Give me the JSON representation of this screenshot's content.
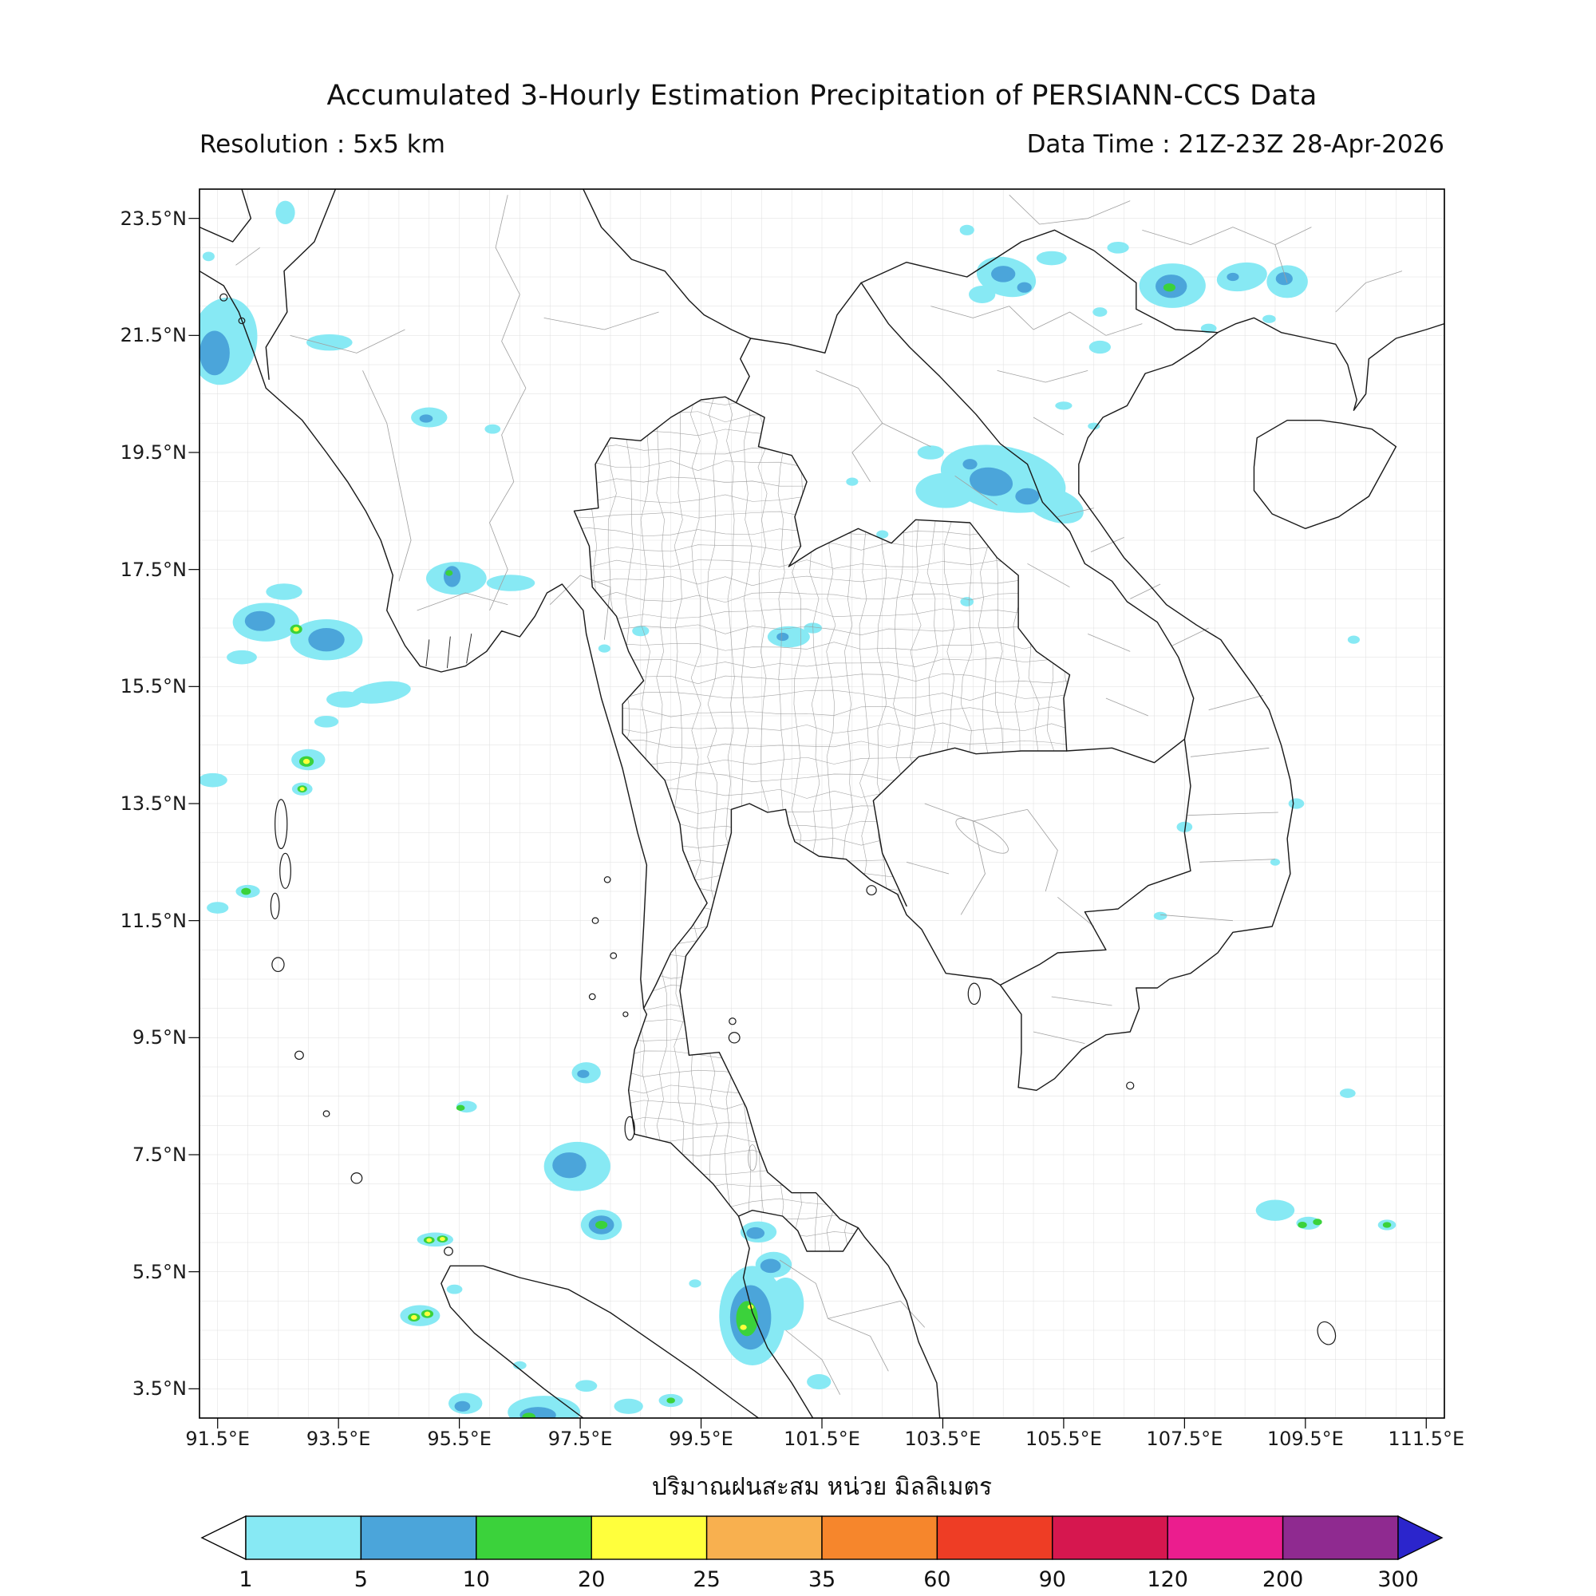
{
  "header": {
    "title": "Accumulated 3-Hourly Estimation Precipitation of PERSIANN-CCS Data",
    "resolution": "Resolution : 5x5 km",
    "data_time": "Data Time : 21Z-23Z 28-Apr-2026"
  },
  "map": {
    "extent": {
      "lon_min": 91.2,
      "lon_max": 111.8,
      "lat_min": 3.0,
      "lat_max": 24.0
    },
    "grid_step": 0.5
  },
  "axes": {
    "lon_ticks": [
      {
        "v": 91.5,
        "label": "91.5°E"
      },
      {
        "v": 93.5,
        "label": "93.5°E"
      },
      {
        "v": 95.5,
        "label": "95.5°E"
      },
      {
        "v": 97.5,
        "label": "97.5°E"
      },
      {
        "v": 99.5,
        "label": "99.5°E"
      },
      {
        "v": 101.5,
        "label": "101.5°E"
      },
      {
        "v": 103.5,
        "label": "103.5°E"
      },
      {
        "v": 105.5,
        "label": "105.5°E"
      },
      {
        "v": 107.5,
        "label": "107.5°E"
      },
      {
        "v": 109.5,
        "label": "109.5°E"
      },
      {
        "v": 111.5,
        "label": "111.5°E"
      }
    ],
    "lat_ticks": [
      {
        "v": 23.5,
        "label": "23.5°N"
      },
      {
        "v": 21.5,
        "label": "21.5°N"
      },
      {
        "v": 19.5,
        "label": "19.5°N"
      },
      {
        "v": 17.5,
        "label": "17.5°N"
      },
      {
        "v": 15.5,
        "label": "15.5°N"
      },
      {
        "v": 13.5,
        "label": "13.5°N"
      },
      {
        "v": 11.5,
        "label": "11.5°N"
      },
      {
        "v": 9.5,
        "label": "9.5°N"
      },
      {
        "v": 7.5,
        "label": "7.5°N"
      },
      {
        "v": 5.5,
        "label": "5.5°N"
      },
      {
        "v": 3.5,
        "label": "3.5°N"
      }
    ]
  },
  "colorbar": {
    "unit_label_thai": "ปริมาณฝนสะสม หน่วย มิลลิเมตร",
    "tick_labels": [
      "1",
      "5",
      "10",
      "20",
      "25",
      "35",
      "60",
      "90",
      "120",
      "200",
      "300"
    ],
    "segment_colors": [
      "#87e9f4",
      "#4ba5da",
      "#3bd23b",
      "#ffff3c",
      "#f8b04f",
      "#f6862c",
      "#ee3d25",
      "#d6174f",
      "#eb1d8e",
      "#8f2a90"
    ],
    "left_arrow_color": "#ffffff",
    "right_arrow_color": "#2b25cc"
  },
  "precipitation": {
    "units": "mm",
    "level_ranges_mm": {
      "c1": "1-5",
      "c2": "5-10",
      "c3": "10-20",
      "c4": "20-25"
    },
    "colors": {
      "c1": "#87e9f4",
      "c2": "#4ba5da",
      "c3": "#3bd23b",
      "c4": "#ffff3c"
    },
    "cells": [
      [
        91.6,
        21.4,
        0.55,
        0.75,
        "c1",
        -10
      ],
      [
        92.62,
        23.6,
        0.16,
        0.2,
        "c1",
        0
      ],
      [
        91.35,
        22.85,
        0.1,
        0.08,
        "c1",
        0
      ],
      [
        93.35,
        21.38,
        0.38,
        0.14,
        "c1",
        0
      ],
      [
        95.0,
        20.1,
        0.3,
        0.17,
        "c1",
        0
      ],
      [
        96.05,
        19.9,
        0.13,
        0.08,
        "c1",
        0
      ],
      [
        104.55,
        22.5,
        0.5,
        0.33,
        "c1",
        -15
      ],
      [
        104.15,
        22.2,
        0.22,
        0.15,
        "c1",
        0
      ],
      [
        105.3,
        22.82,
        0.25,
        0.12,
        "c1",
        0
      ],
      [
        106.4,
        23.0,
        0.18,
        0.1,
        "c1",
        0
      ],
      [
        103.9,
        23.3,
        0.12,
        0.09,
        "c1",
        0
      ],
      [
        107.3,
        22.35,
        0.55,
        0.38,
        "c1",
        0
      ],
      [
        108.45,
        22.5,
        0.42,
        0.24,
        "c1",
        10
      ],
      [
        109.2,
        22.42,
        0.34,
        0.28,
        "c1",
        0
      ],
      [
        106.1,
        21.9,
        0.12,
        0.08,
        "c1",
        0
      ],
      [
        106.1,
        21.3,
        0.18,
        0.11,
        "c1",
        0
      ],
      [
        107.9,
        21.62,
        0.13,
        0.08,
        "c1",
        0
      ],
      [
        108.9,
        21.78,
        0.11,
        0.07,
        "c1",
        0
      ],
      [
        105.5,
        20.3,
        0.14,
        0.07,
        "c1",
        0
      ],
      [
        106.0,
        19.95,
        0.1,
        0.06,
        "c1",
        0
      ],
      [
        104.5,
        19.05,
        1.05,
        0.55,
        "c1",
        -12
      ],
      [
        103.55,
        18.85,
        0.5,
        0.3,
        "c1",
        0
      ],
      [
        105.35,
        18.6,
        0.5,
        0.28,
        "c1",
        -20
      ],
      [
        103.3,
        19.5,
        0.22,
        0.12,
        "c1",
        0
      ],
      [
        102.0,
        19.0,
        0.1,
        0.07,
        "c1",
        0
      ],
      [
        102.5,
        18.1,
        0.1,
        0.07,
        "c1",
        0
      ],
      [
        92.3,
        16.6,
        0.55,
        0.33,
        "c1",
        0
      ],
      [
        93.3,
        16.3,
        0.6,
        0.35,
        "c1",
        0
      ],
      [
        92.6,
        17.12,
        0.3,
        0.14,
        "c1",
        0
      ],
      [
        91.9,
        16.0,
        0.25,
        0.12,
        "c1",
        0
      ],
      [
        95.45,
        17.35,
        0.5,
        0.28,
        "c1",
        0
      ],
      [
        96.35,
        17.27,
        0.4,
        0.14,
        "c1",
        0
      ],
      [
        94.2,
        15.4,
        0.5,
        0.18,
        "c1",
        8
      ],
      [
        93.6,
        15.28,
        0.3,
        0.14,
        "c1",
        0
      ],
      [
        93.3,
        14.9,
        0.2,
        0.1,
        "c1",
        0
      ],
      [
        93.0,
        14.25,
        0.28,
        0.18,
        "c1",
        0
      ],
      [
        92.9,
        13.75,
        0.17,
        0.11,
        "c1",
        0
      ],
      [
        91.42,
        13.9,
        0.24,
        0.12,
        "c1",
        0
      ],
      [
        91.5,
        11.72,
        0.18,
        0.1,
        "c1",
        0
      ],
      [
        98.5,
        16.45,
        0.14,
        0.09,
        "c1",
        0
      ],
      [
        97.9,
        16.15,
        0.1,
        0.07,
        "c1",
        0
      ],
      [
        100.95,
        16.35,
        0.35,
        0.18,
        "c1",
        0
      ],
      [
        101.35,
        16.5,
        0.15,
        0.09,
        "c1",
        0
      ],
      [
        103.9,
        16.95,
        0.11,
        0.08,
        "c1",
        0
      ],
      [
        92.0,
        12.0,
        0.2,
        0.11,
        "c1",
        0
      ],
      [
        97.6,
        8.9,
        0.24,
        0.18,
        "c1",
        0
      ],
      [
        95.62,
        8.32,
        0.17,
        0.1,
        "c1",
        0
      ],
      [
        97.45,
        7.3,
        0.55,
        0.42,
        "c1",
        0
      ],
      [
        97.85,
        6.3,
        0.34,
        0.26,
        "c1",
        0
      ],
      [
        95.1,
        6.05,
        0.3,
        0.12,
        "c1",
        0
      ],
      [
        95.42,
        5.2,
        0.13,
        0.08,
        "c1",
        0
      ],
      [
        94.85,
        4.75,
        0.33,
        0.18,
        "c1",
        0
      ],
      [
        96.5,
        3.9,
        0.11,
        0.07,
        "c1",
        0
      ],
      [
        100.45,
        6.18,
        0.3,
        0.18,
        "c1",
        0
      ],
      [
        100.7,
        5.62,
        0.3,
        0.22,
        "c1",
        0
      ],
      [
        100.35,
        4.75,
        0.55,
        0.85,
        "c1",
        0
      ],
      [
        100.9,
        4.95,
        0.3,
        0.45,
        "c1",
        0
      ],
      [
        101.45,
        3.62,
        0.2,
        0.13,
        "c1",
        0
      ],
      [
        99.4,
        5.3,
        0.1,
        0.07,
        "c1",
        0
      ],
      [
        95.6,
        3.25,
        0.28,
        0.18,
        "c1",
        0
      ],
      [
        96.9,
        3.1,
        0.6,
        0.28,
        "c1",
        0
      ],
      [
        97.6,
        3.55,
        0.18,
        0.1,
        "c1",
        0
      ],
      [
        98.3,
        3.2,
        0.24,
        0.13,
        "c1",
        0
      ],
      [
        99.0,
        3.3,
        0.2,
        0.11,
        "c1",
        0
      ],
      [
        107.5,
        13.1,
        0.13,
        0.09,
        "c1",
        0
      ],
      [
        109.35,
        13.5,
        0.13,
        0.09,
        "c1",
        0
      ],
      [
        109.0,
        12.5,
        0.08,
        0.06,
        "c1",
        0
      ],
      [
        107.1,
        11.58,
        0.11,
        0.07,
        "c1",
        0
      ],
      [
        110.3,
        16.3,
        0.1,
        0.07,
        "c1",
        0
      ],
      [
        109.0,
        6.55,
        0.32,
        0.18,
        "c1",
        0
      ],
      [
        109.55,
        6.33,
        0.2,
        0.11,
        "c1",
        0
      ],
      [
        110.85,
        6.3,
        0.15,
        0.09,
        "c1",
        0
      ],
      [
        110.2,
        8.55,
        0.13,
        0.08,
        "c1",
        0
      ],
      [
        91.45,
        21.2,
        0.25,
        0.38,
        "c2",
        0
      ],
      [
        94.95,
        20.08,
        0.11,
        0.07,
        "c2",
        0
      ],
      [
        104.5,
        22.55,
        0.2,
        0.14,
        "c2",
        0
      ],
      [
        104.85,
        22.32,
        0.12,
        0.09,
        "c2",
        0
      ],
      [
        107.28,
        22.34,
        0.26,
        0.2,
        "c2",
        0
      ],
      [
        108.3,
        22.5,
        0.1,
        0.07,
        "c2",
        0
      ],
      [
        109.15,
        22.47,
        0.14,
        0.11,
        "c2",
        0
      ],
      [
        104.3,
        19.0,
        0.36,
        0.24,
        "c2",
        -10
      ],
      [
        104.9,
        18.75,
        0.2,
        0.14,
        "c2",
        0
      ],
      [
        103.95,
        19.3,
        0.12,
        0.09,
        "c2",
        0
      ],
      [
        92.2,
        16.62,
        0.25,
        0.17,
        "c2",
        0
      ],
      [
        93.3,
        16.3,
        0.3,
        0.2,
        "c2",
        0
      ],
      [
        95.38,
        17.38,
        0.14,
        0.18,
        "c2",
        0
      ],
      [
        100.85,
        16.35,
        0.1,
        0.07,
        "c2",
        0
      ],
      [
        97.55,
        8.88,
        0.1,
        0.07,
        "c2",
        0
      ],
      [
        97.32,
        7.32,
        0.28,
        0.22,
        "c2",
        0
      ],
      [
        97.85,
        6.3,
        0.21,
        0.16,
        "c2",
        0
      ],
      [
        100.4,
        6.16,
        0.15,
        0.1,
        "c2",
        0
      ],
      [
        100.65,
        5.6,
        0.17,
        0.12,
        "c2",
        0
      ],
      [
        100.32,
        4.72,
        0.34,
        0.55,
        "c2",
        0
      ],
      [
        95.55,
        3.2,
        0.13,
        0.09,
        "c2",
        0
      ],
      [
        96.8,
        3.05,
        0.3,
        0.14,
        "c2",
        0
      ],
      [
        107.25,
        22.32,
        0.1,
        0.07,
        "c3",
        0
      ],
      [
        92.8,
        16.48,
        0.1,
        0.08,
        "c3",
        0
      ],
      [
        95.33,
        17.44,
        0.06,
        0.05,
        "c3",
        0
      ],
      [
        92.97,
        14.22,
        0.12,
        0.09,
        "c3",
        0
      ],
      [
        92.9,
        13.75,
        0.08,
        0.06,
        "c3",
        0
      ],
      [
        91.97,
        12.0,
        0.08,
        0.06,
        "c3",
        0
      ],
      [
        95.52,
        8.3,
        0.07,
        0.05,
        "c3",
        0
      ],
      [
        97.85,
        6.3,
        0.1,
        0.07,
        "c3",
        0
      ],
      [
        95.0,
        6.04,
        0.09,
        0.06,
        "c3",
        0
      ],
      [
        95.22,
        6.06,
        0.09,
        0.06,
        "c3",
        0
      ],
      [
        94.75,
        4.72,
        0.1,
        0.07,
        "c3",
        0
      ],
      [
        94.97,
        4.78,
        0.1,
        0.07,
        "c3",
        0
      ],
      [
        100.26,
        4.7,
        0.18,
        0.3,
        "c3",
        0
      ],
      [
        96.65,
        3.02,
        0.11,
        0.07,
        "c3",
        0
      ],
      [
        99.0,
        3.3,
        0.07,
        0.05,
        "c3",
        0
      ],
      [
        109.45,
        6.3,
        0.075,
        0.055,
        "c3",
        0
      ],
      [
        109.7,
        6.35,
        0.075,
        0.055,
        "c3",
        0
      ],
      [
        110.85,
        6.3,
        0.07,
        0.05,
        "c3",
        0
      ],
      [
        92.8,
        16.48,
        0.05,
        0.04,
        "c4",
        0
      ],
      [
        92.97,
        14.22,
        0.055,
        0.045,
        "c4",
        0
      ],
      [
        92.9,
        13.75,
        0.04,
        0.035,
        "c4",
        0
      ],
      [
        95.0,
        6.04,
        0.045,
        0.035,
        "c4",
        0
      ],
      [
        95.22,
        6.06,
        0.045,
        0.035,
        "c4",
        0
      ],
      [
        94.75,
        4.72,
        0.05,
        0.04,
        "c4",
        0
      ],
      [
        94.97,
        4.78,
        0.05,
        0.04,
        "c4",
        0
      ],
      [
        100.2,
        4.55,
        0.055,
        0.045,
        "c4",
        0
      ],
      [
        100.32,
        4.9,
        0.05,
        0.04,
        "c4",
        0
      ]
    ]
  }
}
